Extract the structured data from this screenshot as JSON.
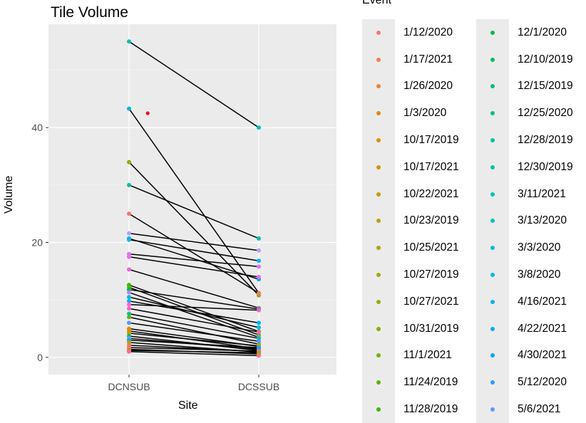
{
  "chart_data": {
    "type": "scatter",
    "title": "Tile Volume",
    "xlabel": "Site",
    "ylabel": "Volume",
    "categories": [
      "DCNSUB",
      "DCSSUB"
    ],
    "ylim": [
      -3,
      58
    ],
    "yticks": [
      0,
      20,
      40
    ],
    "ytick_labels": [
      "0",
      "20",
      "40"
    ],
    "grid": true,
    "legend_title": "Event",
    "legend_position": "right",
    "legend": [
      {
        "label": "1/12/2020",
        "color": "#F8766D"
      },
      {
        "label": "1/17/2021",
        "color": "#F17D50"
      },
      {
        "label": "1/26/2020",
        "color": "#EA8331"
      },
      {
        "label": "1/3/2020",
        "color": "#E18A00"
      },
      {
        "label": "10/17/2019",
        "color": "#D89000"
      },
      {
        "label": "10/17/2021",
        "color": "#CE9600"
      },
      {
        "label": "10/22/2021",
        "color": "#C49A00"
      },
      {
        "label": "10/23/2019",
        "color": "#B9A000"
      },
      {
        "label": "10/25/2021",
        "color": "#ADA400"
      },
      {
        "label": "10/27/2019",
        "color": "#A0A800"
      },
      {
        "label": "10/27/2021",
        "color": "#92AC00"
      },
      {
        "label": "10/31/2019",
        "color": "#82B000"
      },
      {
        "label": "11/1/2021",
        "color": "#6FB300"
      },
      {
        "label": "11/24/2019",
        "color": "#57B600"
      },
      {
        "label": "11/28/2019",
        "color": "#34B900"
      },
      {
        "label": "12/1/2020",
        "color": "#00BB45"
      },
      {
        "label": "12/10/2019",
        "color": "#00BD5C"
      },
      {
        "label": "12/15/2019",
        "color": "#00BF72"
      },
      {
        "label": "12/25/2020",
        "color": "#00C086"
      },
      {
        "label": "12/28/2019",
        "color": "#00C19A"
      },
      {
        "label": "12/30/2019",
        "color": "#00C0AC"
      },
      {
        "label": "3/11/2021",
        "color": "#00BFBD"
      },
      {
        "label": "3/13/2020",
        "color": "#00BDCD"
      },
      {
        "label": "3/3/2020",
        "color": "#00BADC"
      },
      {
        "label": "3/8/2020",
        "color": "#00B6E9"
      },
      {
        "label": "4/16/2021",
        "color": "#00B1F5"
      },
      {
        "label": "4/22/2021",
        "color": "#00ABFD"
      },
      {
        "label": "4/30/2021",
        "color": "#00A5FF"
      },
      {
        "label": "5/12/2020",
        "color": "#279DFF"
      },
      {
        "label": "5/6/2021",
        "color": "#5E96FF"
      }
    ],
    "pairs": [
      {
        "dcnsub": 55.0,
        "dcssub": 40.0,
        "color": "#00BFBD"
      },
      {
        "dcnsub": 43.3,
        "dcssub": 11.2,
        "color": "#00BADC"
      },
      {
        "dcnsub": 34.0,
        "dcssub": 10.8,
        "color": "#92AC00"
      },
      {
        "dcnsub": 30.0,
        "dcssub": 20.7,
        "color": "#00C0AC"
      },
      {
        "dcnsub": 25.0,
        "dcssub": 11.2,
        "color": "#F8766D"
      },
      {
        "dcnsub": 21.6,
        "dcssub": 18.6,
        "color": "#B4A0FF"
      },
      {
        "dcnsub": 20.7,
        "dcssub": 13.6,
        "color": "#00A5FF"
      },
      {
        "dcnsub": 20.5,
        "dcssub": 16.8,
        "color": "#00B6E9"
      },
      {
        "dcnsub": 18.0,
        "dcssub": 15.8,
        "color": "#DD71FA"
      },
      {
        "dcnsub": 17.5,
        "dcssub": 14.0,
        "color": "#E76BF3"
      },
      {
        "dcnsub": 15.3,
        "dcssub": 8.6,
        "color": "#F263E2"
      },
      {
        "dcnsub": 12.6,
        "dcssub": 4.5,
        "color": "#34B900"
      },
      {
        "dcnsub": 12.2,
        "dcssub": 3.9,
        "color": "#57B600"
      },
      {
        "dcnsub": 11.8,
        "dcssub": 8.4,
        "color": "#00BB45"
      },
      {
        "dcnsub": 11.3,
        "dcssub": 3.5,
        "color": "#C77CFF"
      },
      {
        "dcnsub": 10.5,
        "dcssub": 5.2,
        "color": "#00BDCD"
      },
      {
        "dcnsub": 9.8,
        "dcssub": 6.0,
        "color": "#00B1F5"
      },
      {
        "dcnsub": 9.2,
        "dcssub": 8.2,
        "color": "#FB61D7"
      },
      {
        "dcnsub": 8.5,
        "dcssub": 4.4,
        "color": "#FF62BC"
      },
      {
        "dcnsub": 7.6,
        "dcssub": 3.3,
        "color": "#00C19A"
      },
      {
        "dcnsub": 7.0,
        "dcssub": 2.3,
        "color": "#6FB300"
      },
      {
        "dcnsub": 6.0,
        "dcssub": 2.8,
        "color": "#5E96FF"
      },
      {
        "dcnsub": 5.0,
        "dcssub": 1.9,
        "color": "#D89000"
      },
      {
        "dcnsub": 4.6,
        "dcssub": 1.5,
        "color": "#E18A00"
      },
      {
        "dcnsub": 4.2,
        "dcssub": 2.0,
        "color": "#C49A00"
      },
      {
        "dcnsub": 3.7,
        "dcssub": 1.2,
        "color": "#00BD5C"
      },
      {
        "dcnsub": 3.3,
        "dcssub": 1.4,
        "color": "#8F91FF"
      },
      {
        "dcnsub": 3.0,
        "dcssub": 1.7,
        "color": "#00ABFD"
      },
      {
        "dcnsub": 2.6,
        "dcssub": 0.9,
        "color": "#ADA400"
      },
      {
        "dcnsub": 2.1,
        "dcssub": 1.0,
        "color": "#EA8331"
      },
      {
        "dcnsub": 1.7,
        "dcssub": 1.1,
        "color": "#FF65AC"
      },
      {
        "dcnsub": 1.4,
        "dcssub": 0.6,
        "color": "#F17D50"
      },
      {
        "dcnsub": 1.2,
        "dcssub": 0.8,
        "color": "#A3A500"
      },
      {
        "dcnsub": 1.0,
        "dcssub": 0.3,
        "color": "#FF6C91"
      }
    ],
    "outliers": [
      {
        "site": "DCNSUB",
        "offset": 0.09,
        "y": 42.5,
        "color": "#E8121F"
      }
    ]
  }
}
